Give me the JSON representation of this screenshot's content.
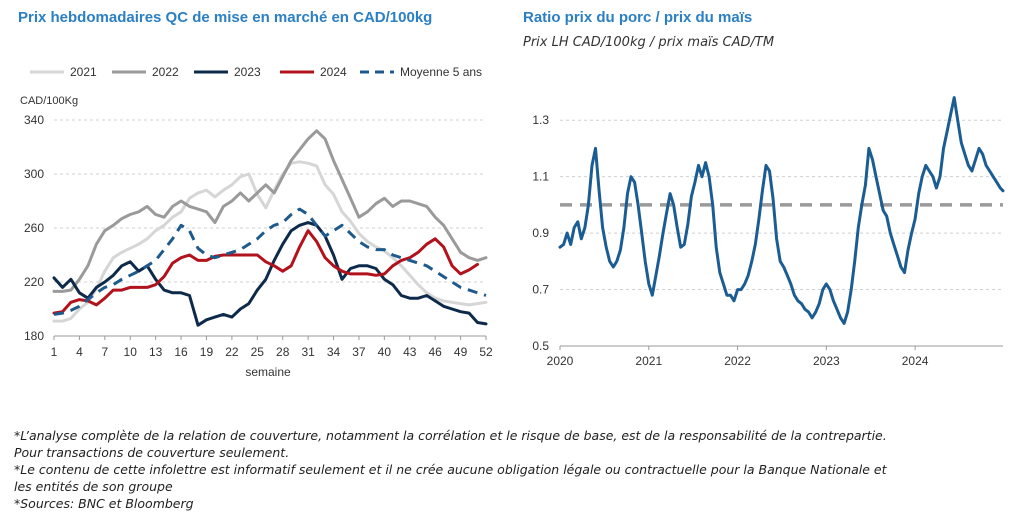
{
  "chart_data": [
    {
      "type": "line",
      "title": "Prix hebdomadaires QC de mise en marché en CAD/100kg",
      "ylabel": "CAD/100Kg",
      "xlabel": "semaine",
      "ylim": [
        180,
        340
      ],
      "yticks": [
        180,
        220,
        260,
        300,
        340
      ],
      "xlim": [
        1,
        52
      ],
      "xticks": [
        1,
        4,
        7,
        10,
        13,
        16,
        19,
        22,
        25,
        28,
        31,
        34,
        37,
        40,
        43,
        46,
        49,
        52
      ],
      "grid": true,
      "legend_position": "top",
      "series": [
        {
          "name": "2021",
          "color": "#d6d6d6",
          "dash": false,
          "x": [
            1,
            2,
            3,
            4,
            5,
            6,
            7,
            8,
            9,
            10,
            11,
            12,
            13,
            14,
            15,
            16,
            17,
            18,
            19,
            20,
            21,
            22,
            23,
            24,
            25,
            26,
            27,
            28,
            29,
            30,
            31,
            32,
            33,
            34,
            35,
            36,
            37,
            38,
            39,
            40,
            41,
            42,
            43,
            44,
            45,
            46,
            47,
            48,
            49,
            50,
            51,
            52
          ],
          "values": [
            191,
            191,
            193,
            200,
            205,
            215,
            228,
            238,
            242,
            245,
            248,
            252,
            258,
            262,
            268,
            272,
            282,
            286,
            288,
            283,
            288,
            292,
            298,
            300,
            285,
            275,
            288,
            300,
            308,
            309,
            308,
            306,
            292,
            285,
            272,
            265,
            256,
            250,
            246,
            243,
            238,
            232,
            225,
            218,
            212,
            208,
            206,
            205,
            204,
            203,
            204,
            205
          ]
        },
        {
          "name": "2022",
          "color": "#9a9a9a",
          "dash": false,
          "x": [
            1,
            2,
            3,
            4,
            5,
            6,
            7,
            8,
            9,
            10,
            11,
            12,
            13,
            14,
            15,
            16,
            17,
            18,
            19,
            20,
            21,
            22,
            23,
            24,
            25,
            26,
            27,
            28,
            29,
            30,
            31,
            32,
            33,
            34,
            35,
            36,
            37,
            38,
            39,
            40,
            41,
            42,
            43,
            44,
            45,
            46,
            47,
            48,
            49,
            50,
            51,
            52
          ],
          "values": [
            213,
            213,
            214,
            222,
            232,
            248,
            258,
            262,
            267,
            270,
            272,
            276,
            270,
            268,
            276,
            280,
            276,
            274,
            272,
            264,
            276,
            280,
            286,
            280,
            286,
            292,
            286,
            298,
            310,
            318,
            326,
            332,
            326,
            310,
            296,
            282,
            268,
            272,
            278,
            282,
            276,
            280,
            280,
            278,
            276,
            268,
            262,
            252,
            242,
            238,
            236,
            238
          ]
        },
        {
          "name": "2023",
          "color": "#0d2a4a",
          "dash": false,
          "x": [
            1,
            2,
            3,
            4,
            5,
            6,
            7,
            8,
            9,
            10,
            11,
            12,
            13,
            14,
            15,
            16,
            17,
            18,
            19,
            20,
            21,
            22,
            23,
            24,
            25,
            26,
            27,
            28,
            29,
            30,
            31,
            32,
            33,
            34,
            35,
            36,
            37,
            38,
            39,
            40,
            41,
            42,
            43,
            44,
            45,
            46,
            47,
            48,
            49,
            50,
            51,
            52
          ],
          "values": [
            223,
            216,
            222,
            212,
            208,
            216,
            220,
            225,
            232,
            235,
            228,
            232,
            222,
            214,
            212,
            212,
            210,
            188,
            192,
            194,
            196,
            194,
            200,
            204,
            214,
            222,
            236,
            248,
            258,
            262,
            264,
            262,
            254,
            240,
            222,
            230,
            232,
            232,
            230,
            222,
            218,
            210,
            208,
            208,
            210,
            206,
            202,
            200,
            198,
            197,
            190,
            189
          ]
        },
        {
          "name": "2024",
          "color": "#b2121b",
          "dash": false,
          "x": [
            1,
            2,
            3,
            4,
            5,
            6,
            7,
            8,
            9,
            10,
            11,
            12,
            13,
            14,
            15,
            16,
            17,
            18,
            19,
            20,
            21,
            22,
            23,
            24,
            25,
            26,
            27,
            28,
            29,
            30,
            31,
            32,
            33,
            34,
            35,
            36,
            37,
            38,
            39,
            40,
            41,
            42,
            43,
            44,
            45,
            46,
            47,
            48,
            49,
            50,
            51
          ],
          "values": [
            197,
            198,
            205,
            207,
            206,
            203,
            208,
            214,
            214,
            216,
            216,
            216,
            218,
            224,
            234,
            238,
            240,
            236,
            236,
            239,
            240,
            240,
            240,
            240,
            240,
            235,
            232,
            228,
            232,
            246,
            258,
            250,
            238,
            232,
            228,
            226,
            226,
            226,
            225,
            226,
            232,
            236,
            238,
            242,
            248,
            252,
            246,
            232,
            226,
            229,
            233
          ]
        },
        {
          "name": "Moyenne 5 ans",
          "color": "#1f5a8c",
          "dash": true,
          "x": [
            1,
            2,
            3,
            4,
            5,
            6,
            7,
            8,
            9,
            10,
            11,
            12,
            13,
            14,
            15,
            16,
            17,
            18,
            19,
            20,
            21,
            22,
            23,
            24,
            25,
            26,
            27,
            28,
            29,
            30,
            31,
            32,
            33,
            34,
            35,
            36,
            37,
            38,
            39,
            40,
            41,
            42,
            43,
            44,
            45,
            46,
            47,
            48,
            49,
            50,
            51,
            52
          ],
          "values": [
            196,
            197,
            199,
            202,
            207,
            212,
            216,
            218,
            222,
            225,
            228,
            232,
            236,
            244,
            252,
            262,
            258,
            245,
            240,
            238,
            240,
            242,
            244,
            248,
            252,
            258,
            262,
            264,
            270,
            274,
            270,
            262,
            254,
            258,
            262,
            256,
            250,
            246,
            244,
            244,
            240,
            238,
            236,
            234,
            232,
            228,
            224,
            220,
            216,
            214,
            212,
            210
          ]
        }
      ]
    },
    {
      "type": "line",
      "title": "Ratio prix du porc / prix du maïs",
      "subtitle": "Prix LH CAD/100kg / prix maïs CAD/TM",
      "ylim": [
        0.5,
        1.4
      ],
      "yticks": [
        "0.5",
        "0.7",
        "0.9",
        "1.1",
        "1.3"
      ],
      "xlim": [
        2020.0,
        2024.99
      ],
      "xticks": [
        "2020",
        "2021",
        "2022",
        "2023",
        "2024"
      ],
      "grid": true,
      "reference_line": {
        "y": 1.0,
        "color": "#9a9a9a",
        "dash": true
      },
      "series": [
        {
          "color": "#1b5d93",
          "x": [
            2020.0,
            2020.04,
            2020.08,
            2020.12,
            2020.16,
            2020.2,
            2020.24,
            2020.28,
            2020.32,
            2020.36,
            2020.4,
            2020.44,
            2020.48,
            2020.52,
            2020.56,
            2020.6,
            2020.64,
            2020.68,
            2020.72,
            2020.76,
            2020.8,
            2020.84,
            2020.88,
            2020.92,
            2020.96,
            2021.0,
            2021.04,
            2021.08,
            2021.12,
            2021.16,
            2021.2,
            2021.24,
            2021.28,
            2021.32,
            2021.36,
            2021.4,
            2021.44,
            2021.48,
            2021.52,
            2021.56,
            2021.6,
            2021.64,
            2021.68,
            2021.72,
            2021.76,
            2021.8,
            2021.84,
            2021.88,
            2021.92,
            2021.96,
            2022.0,
            2022.04,
            2022.08,
            2022.12,
            2022.16,
            2022.2,
            2022.24,
            2022.28,
            2022.32,
            2022.36,
            2022.4,
            2022.44,
            2022.48,
            2022.52,
            2022.56,
            2022.6,
            2022.64,
            2022.68,
            2022.72,
            2022.76,
            2022.8,
            2022.84,
            2022.88,
            2022.92,
            2022.96,
            2023.0,
            2023.04,
            2023.08,
            2023.12,
            2023.16,
            2023.2,
            2023.24,
            2023.28,
            2023.32,
            2023.36,
            2023.4,
            2023.44,
            2023.48,
            2023.52,
            2023.56,
            2023.6,
            2023.64,
            2023.68,
            2023.72,
            2023.76,
            2023.8,
            2023.84,
            2023.88,
            2023.92,
            2023.96,
            2024.0,
            2024.04,
            2024.08,
            2024.12,
            2024.16,
            2024.2,
            2024.24,
            2024.28,
            2024.32,
            2024.36,
            2024.4,
            2024.44,
            2024.48,
            2024.52,
            2024.56,
            2024.6,
            2024.64,
            2024.68,
            2024.72,
            2024.76,
            2024.8,
            2024.84,
            2024.88,
            2024.92,
            2024.96,
            2024.99
          ],
          "values": [
            0.85,
            0.86,
            0.9,
            0.86,
            0.92,
            0.94,
            0.88,
            0.92,
            1.0,
            1.14,
            1.2,
            1.05,
            0.92,
            0.85,
            0.8,
            0.78,
            0.8,
            0.84,
            0.92,
            1.04,
            1.1,
            1.08,
            1.0,
            0.9,
            0.8,
            0.72,
            0.68,
            0.75,
            0.82,
            0.9,
            0.97,
            1.04,
            1.0,
            0.92,
            0.85,
            0.86,
            0.93,
            1.03,
            1.08,
            1.14,
            1.1,
            1.15,
            1.1,
            1.0,
            0.85,
            0.76,
            0.72,
            0.68,
            0.68,
            0.66,
            0.7,
            0.7,
            0.72,
            0.75,
            0.8,
            0.86,
            0.95,
            1.05,
            1.14,
            1.12,
            1.02,
            0.88,
            0.8,
            0.78,
            0.75,
            0.72,
            0.68,
            0.66,
            0.65,
            0.63,
            0.62,
            0.6,
            0.62,
            0.65,
            0.7,
            0.72,
            0.7,
            0.66,
            0.63,
            0.6,
            0.58,
            0.62,
            0.7,
            0.8,
            0.92,
            1.0,
            1.07,
            1.2,
            1.16,
            1.1,
            1.04,
            0.98,
            0.96,
            0.9,
            0.86,
            0.82,
            0.78,
            0.76,
            0.84,
            0.9,
            0.95,
            1.04,
            1.1,
            1.14,
            1.12,
            1.1,
            1.06,
            1.1,
            1.2,
            1.26,
            1.32,
            1.38,
            1.3,
            1.22,
            1.18,
            1.14,
            1.12,
            1.16,
            1.2,
            1.18,
            1.14,
            1.12,
            1.1,
            1.08,
            1.06,
            1.05
          ]
        }
      ]
    }
  ],
  "footnotes": [
    "*L’analyse complète de la relation de couverture, notamment la corrélation et le risque de base, est de la responsabilité de la contrepartie.",
    "Pour transactions de couverture seulement.",
    "*Le contenu de cette infolettre est informatif seulement et il ne crée aucune obligation légale ou contractuelle pour la Banque Nationale et",
    "les entités de son groupe",
    "*Sources: BNC et Bloomberg"
  ],
  "colors": {
    "title": "#2b7fc3",
    "grid": "#d0d0d0",
    "axis_text": "#333333"
  }
}
